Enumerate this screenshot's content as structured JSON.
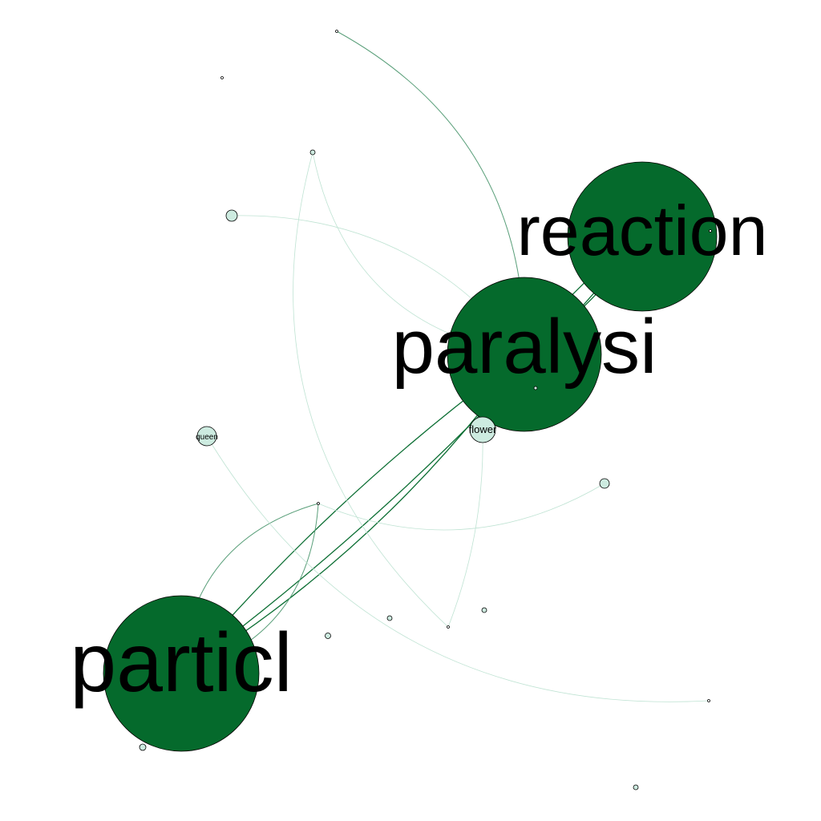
{
  "graph": {
    "colors": {
      "large_node": "#056a2c",
      "small_node": "#cdebe0",
      "edge_strong": "#0b6e33",
      "edge_medium": "#5a9f7a",
      "edge_light": "#bfe3d3"
    },
    "nodes": [
      {
        "id": "reaction",
        "label": "reaction",
        "weight": "large"
      },
      {
        "id": "paralysi",
        "label": "paralysi",
        "weight": "large"
      },
      {
        "id": "particl",
        "label": "particl",
        "weight": "large"
      },
      {
        "id": "flower",
        "label": "flower",
        "weight": "medium"
      },
      {
        "id": "queen",
        "label": "queen",
        "weight": "medium"
      },
      {
        "id": "n_top",
        "label": "",
        "weight": "tiny"
      },
      {
        "id": "n_topleft",
        "label": "",
        "weight": "tiny"
      },
      {
        "id": "n_upper",
        "label": "",
        "weight": "tiny"
      },
      {
        "id": "n_left_small",
        "label": "",
        "weight": "small"
      },
      {
        "id": "n_right_small",
        "label": "",
        "weight": "small"
      },
      {
        "id": "n_mid",
        "label": "",
        "weight": "tiny"
      },
      {
        "id": "n_c1",
        "label": "",
        "weight": "tiny"
      },
      {
        "id": "n_c2",
        "label": "",
        "weight": "tiny"
      },
      {
        "id": "n_c3",
        "label": "",
        "weight": "tiny"
      },
      {
        "id": "n_c4",
        "label": "",
        "weight": "tiny"
      },
      {
        "id": "n_br",
        "label": "",
        "weight": "tiny"
      },
      {
        "id": "n_bl",
        "label": "",
        "weight": "tiny"
      },
      {
        "id": "n_bottom",
        "label": "",
        "weight": "tiny"
      },
      {
        "id": "n_in_paralysi",
        "label": "",
        "weight": "tiny"
      },
      {
        "id": "n_in_reaction",
        "label": "",
        "weight": "tiny"
      }
    ],
    "edges": [
      {
        "source": "paralysi",
        "target": "reaction",
        "strength": "strong"
      },
      {
        "source": "paralysi",
        "target": "reaction",
        "strength": "strong"
      },
      {
        "source": "particl",
        "target": "paralysi",
        "strength": "strong"
      },
      {
        "source": "particl",
        "target": "paralysi",
        "strength": "strong"
      },
      {
        "source": "particl",
        "target": "reaction",
        "strength": "strong"
      },
      {
        "source": "n_top",
        "target": "paralysi",
        "strength": "medium"
      },
      {
        "source": "n_left_small",
        "target": "paralysi",
        "strength": "light"
      },
      {
        "source": "n_upper",
        "target": "paralysi",
        "strength": "light"
      },
      {
        "source": "n_upper",
        "target": "n_c3",
        "strength": "light"
      },
      {
        "source": "particl",
        "target": "n_mid",
        "strength": "medium"
      },
      {
        "source": "particl",
        "target": "n_mid",
        "strength": "medium"
      },
      {
        "source": "n_mid",
        "target": "n_right_small",
        "strength": "light"
      },
      {
        "source": "queen",
        "target": "n_br",
        "strength": "light"
      },
      {
        "source": "flower",
        "target": "n_c3",
        "strength": "light"
      }
    ]
  }
}
